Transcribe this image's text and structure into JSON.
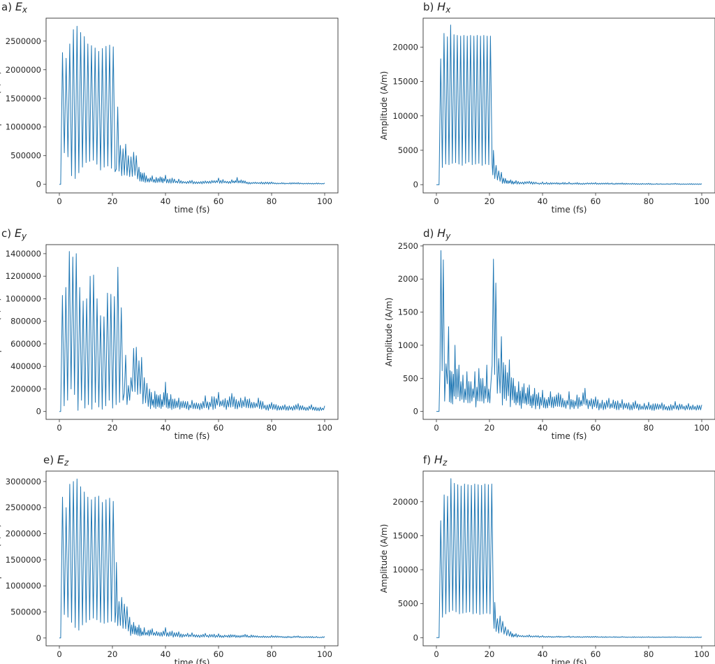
{
  "figure": {
    "line_color": "#1f77b4"
  },
  "chart_data": [
    {
      "type": "line",
      "panel": "a",
      "symbol": "E",
      "sub": "x",
      "xlabel": "time (fs)",
      "ylabel": "Amplitude (V/m)",
      "xlim": [
        -5,
        105
      ],
      "ylim": [
        -150000,
        2900000
      ],
      "xticks": [
        0,
        20,
        40,
        60,
        80,
        100
      ],
      "yticks": [
        0,
        500000,
        1000000,
        1500000,
        2000000,
        2500000
      ],
      "series": [
        {
          "name": "E_x",
          "profile": {
            "onset": 0.5,
            "plateau_end": 21,
            "peak_values": [
              2300000,
              2200000,
              2450000,
              2700000,
              2760000,
              2650000,
              2580000,
              2450000,
              2420000,
              2380000,
              2320000,
              2370000,
              2410000,
              2430000,
              2400000
            ],
            "trough_values": [
              550000,
              480000,
              150000,
              100000,
              200000,
              300000,
              380000,
              400000,
              420000,
              350000,
              250000,
              300000,
              320000,
              280000,
              220000
            ],
            "tail_peaks": [
              [
                22,
                1350000
              ],
              [
                23,
                680000
              ],
              [
                24,
                620000
              ],
              [
                25,
                700000
              ],
              [
                26,
                500000
              ],
              [
                27,
                480000
              ],
              [
                28,
                560000
              ],
              [
                29,
                500000
              ],
              [
                30,
                300000
              ],
              [
                32,
                200000
              ],
              [
                35,
                150000
              ],
              [
                38,
                130000
              ],
              [
                40,
                160000
              ],
              [
                45,
                90000
              ],
              [
                50,
                70000
              ],
              [
                55,
                60000
              ],
              [
                60,
                110000
              ],
              [
                65,
                80000
              ],
              [
                67,
                120000
              ],
              [
                70,
                60000
              ],
              [
                80,
                40000
              ],
              [
                90,
                30000
              ],
              [
                100,
                25000
              ]
            ]
          }
        }
      ]
    },
    {
      "type": "line",
      "panel": "b",
      "symbol": "H",
      "sub": "x",
      "xlabel": "time (fs)",
      "ylabel": "Amplitude (A/m)",
      "xlim": [
        -5,
        105
      ],
      "ylim": [
        -1200,
        24200
      ],
      "xticks": [
        0,
        20,
        40,
        60,
        80,
        100
      ],
      "yticks": [
        0,
        5000,
        10000,
        15000,
        20000
      ],
      "series": [
        {
          "name": "H_x",
          "profile": {
            "onset": 1,
            "plateau_end": 21,
            "peak_values": [
              18300,
              22000,
              21500,
              23200,
              21800,
              21700,
              21600,
              21700,
              21600,
              21700,
              21600,
              21700,
              21600,
              21700,
              21600,
              21600
            ],
            "trough_values": [
              2500,
              3000,
              2900,
              3100,
              3200,
              3000,
              2800,
              3100,
              3300,
              2900,
              3000,
              3100,
              2800,
              3000,
              2900,
              3000
            ],
            "tail_peaks": [
              [
                21.5,
                5000
              ],
              [
                22.5,
                2800
              ],
              [
                23.5,
                2000
              ],
              [
                24.5,
                1800
              ],
              [
                26,
                900
              ],
              [
                28,
                700
              ],
              [
                30,
                600
              ],
              [
                35,
                500
              ],
              [
                40,
                400
              ],
              [
                50,
                350
              ],
              [
                60,
                300
              ],
              [
                70,
                250
              ],
              [
                80,
                200
              ],
              [
                90,
                200
              ],
              [
                100,
                150
              ]
            ]
          }
        }
      ]
    },
    {
      "type": "line",
      "panel": "c",
      "symbol": "E",
      "sub": "y",
      "xlabel": "time (fs)",
      "ylabel": "Amplitude (V/m)",
      "xlim": [
        -5,
        105
      ],
      "ylim": [
        -70000,
        1480000
      ],
      "xticks": [
        0,
        20,
        40,
        60,
        80,
        100
      ],
      "yticks": [
        0,
        200000,
        400000,
        600000,
        800000,
        1000000,
        1200000,
        1400000
      ],
      "series": [
        {
          "name": "E_y",
          "profile": {
            "onset": 0.5,
            "plateau_end": 24,
            "peak_values": [
              1030000,
              1100000,
              1420000,
              1370000,
              1400000,
              1100000,
              980000,
              1000000,
              1200000,
              1210000,
              1000000,
              850000,
              840000,
              1050000,
              1040000,
              1020000,
              1280000,
              920000
            ],
            "trough_values": [
              50000,
              100000,
              200000,
              150000,
              10000,
              100000,
              30000,
              60000,
              20000,
              80000,
              40000,
              20000,
              50000,
              100000,
              30000,
              60000,
              80000,
              100000
            ],
            "tail_peaks": [
              [
                25,
                500000
              ],
              [
                26,
                230000
              ],
              [
                27,
                300000
              ],
              [
                28,
                560000
              ],
              [
                29,
                570000
              ],
              [
                30,
                450000
              ],
              [
                31,
                480000
              ],
              [
                32,
                300000
              ],
              [
                33,
                250000
              ],
              [
                34,
                200000
              ],
              [
                36,
                180000
              ],
              [
                38,
                150000
              ],
              [
                40,
                260000
              ],
              [
                42,
                150000
              ],
              [
                45,
                120000
              ],
              [
                50,
                100000
              ],
              [
                55,
                140000
              ],
              [
                60,
                170000
              ],
              [
                65,
                160000
              ],
              [
                70,
                130000
              ],
              [
                75,
                120000
              ],
              [
                80,
                80000
              ],
              [
                85,
                60000
              ],
              [
                90,
                70000
              ],
              [
                95,
                60000
              ],
              [
                100,
                50000
              ]
            ]
          }
        }
      ]
    },
    {
      "type": "line",
      "panel": "d",
      "symbol": "H",
      "sub": "y",
      "xlabel": "time (fs)",
      "ylabel": "Amplitude (A/m)",
      "xlim": [
        -5,
        105
      ],
      "ylim": [
        -120,
        2520
      ],
      "xticks": [
        0,
        20,
        40,
        60,
        80,
        100
      ],
      "yticks": [
        0,
        500,
        1000,
        1500,
        2000,
        2500
      ],
      "series": [
        {
          "name": "H_y",
          "profile": {
            "onset": 1,
            "plateau_end": 0,
            "peak_values": [],
            "trough_values": [],
            "tail_peaks": [
              [
                1.7,
                2430
              ],
              [
                2.6,
                2290
              ],
              [
                3.6,
                720
              ],
              [
                4.6,
                1280
              ],
              [
                5.8,
                600
              ],
              [
                7,
                1000
              ],
              [
                8.5,
                700
              ],
              [
                10,
                550
              ],
              [
                11.5,
                600
              ],
              [
                13,
                450
              ],
              [
                14.5,
                600
              ],
              [
                16,
                650
              ],
              [
                17.5,
                500
              ],
              [
                19,
                700
              ],
              [
                20.5,
                400
              ],
              [
                21.5,
                2300
              ],
              [
                22.4,
                1940
              ],
              [
                23.5,
                800
              ],
              [
                24.5,
                1130
              ],
              [
                26,
                700
              ],
              [
                27.5,
                780
              ],
              [
                29,
                500
              ],
              [
                31,
                450
              ],
              [
                33,
                420
              ],
              [
                35,
                400
              ],
              [
                37,
                350
              ],
              [
                40,
                320
              ],
              [
                43,
                300
              ],
              [
                46,
                280
              ],
              [
                50,
                300
              ],
              [
                53,
                250
              ],
              [
                56,
                350
              ],
              [
                60,
                220
              ],
              [
                65,
                200
              ],
              [
                70,
                180
              ],
              [
                75,
                160
              ],
              [
                80,
                140
              ],
              [
                85,
                130
              ],
              [
                90,
                150
              ],
              [
                95,
                120
              ],
              [
                100,
                100
              ]
            ]
          }
        }
      ]
    },
    {
      "type": "line",
      "panel": "e",
      "symbol": "E",
      "sub": "z",
      "xlabel": "time (fs)",
      "ylabel": "Amplitude (V/m)",
      "xlim": [
        -5,
        105
      ],
      "ylim": [
        -150000,
        3200000
      ],
      "xticks": [
        0,
        20,
        40,
        60,
        80,
        100
      ],
      "yticks": [
        0,
        500000,
        1000000,
        1500000,
        2000000,
        2500000,
        3000000
      ],
      "series": [
        {
          "name": "E_z",
          "profile": {
            "onset": 0.5,
            "plateau_end": 21,
            "peak_values": [
              2700000,
              2500000,
              2950000,
              3000000,
              3050000,
              2900000,
              2800000,
              2700000,
              2650000,
              2700000,
              2720000,
              2600000,
              2650000,
              2680000,
              2620000
            ],
            "trough_values": [
              450000,
              400000,
              300000,
              200000,
              150000,
              250000,
              300000,
              350000,
              380000,
              350000,
              300000,
              280000,
              300000,
              320000,
              300000
            ],
            "tail_peaks": [
              [
                21.5,
                1450000
              ],
              [
                22.5,
                700000
              ],
              [
                23.5,
                780000
              ],
              [
                24.5,
                650000
              ],
              [
                25.5,
                600000
              ],
              [
                26.5,
                400000
              ],
              [
                28,
                300000
              ],
              [
                30,
                250000
              ],
              [
                32,
                200000
              ],
              [
                35,
                180000
              ],
              [
                40,
                200000
              ],
              [
                45,
                120000
              ],
              [
                50,
                100000
              ],
              [
                55,
                90000
              ],
              [
                60,
                80000
              ],
              [
                70,
                70000
              ],
              [
                80,
                50000
              ],
              [
                90,
                40000
              ],
              [
                100,
                30000
              ]
            ]
          }
        }
      ]
    },
    {
      "type": "line",
      "panel": "f",
      "symbol": "H",
      "sub": "z",
      "xlabel": "time (fs)",
      "ylabel": "Amplitude (A/m)",
      "xlim": [
        -5,
        105
      ],
      "ylim": [
        -1200,
        24500
      ],
      "xticks": [
        0,
        20,
        40,
        60,
        80,
        100
      ],
      "yticks": [
        0,
        5000,
        10000,
        15000,
        20000
      ],
      "series": [
        {
          "name": "H_z",
          "profile": {
            "onset": 1,
            "plateau_end": 21.5,
            "peak_values": [
              17200,
              21000,
              20800,
              23400,
              22700,
              22500,
              22300,
              22600,
              22500,
              22400,
              22600,
              22500,
              22400,
              22600,
              22500,
              22600
            ],
            "trough_values": [
              3000,
              3500,
              3800,
              4000,
              3800,
              3500,
              3600,
              3700,
              3800,
              3500,
              3600,
              3400,
              3500,
              3600,
              3500,
              3400
            ],
            "tail_peaks": [
              [
                22,
                5200
              ],
              [
                23,
                2800
              ],
              [
                24,
                3200
              ],
              [
                25,
                2400
              ],
              [
                26,
                1600
              ],
              [
                27,
                1200
              ],
              [
                28,
                900
              ],
              [
                30,
                600
              ],
              [
                35,
                400
              ],
              [
                40,
                300
              ],
              [
                50,
                250
              ],
              [
                60,
                200
              ],
              [
                70,
                180
              ],
              [
                80,
                150
              ],
              [
                90,
                150
              ],
              [
                100,
                120
              ]
            ]
          }
        }
      ]
    }
  ]
}
